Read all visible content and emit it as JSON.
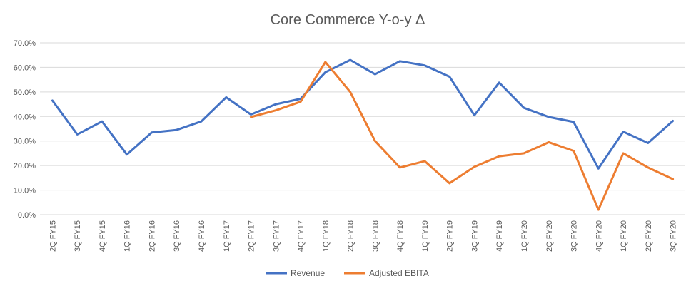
{
  "chart_data": {
    "type": "line",
    "title": "Core Commerce Y-o-y Δ",
    "xlabel": "",
    "ylabel": "",
    "ylim": [
      0,
      70
    ],
    "yticks": [
      "0.0%",
      "10.0%",
      "20.0%",
      "30.0%",
      "40.0%",
      "50.0%",
      "60.0%",
      "70.0%"
    ],
    "grid": true,
    "legend_position": "bottom",
    "categories": [
      "2Q FY15",
      "3Q FY15",
      "4Q FY15",
      "1Q FY16",
      "2Q FY16",
      "3Q FY16",
      "4Q FY16",
      "1Q FY17",
      "2Q FY17",
      "3Q FY17",
      "4Q FY17",
      "1Q FY18",
      "2Q FY18",
      "3Q FY18",
      "4Q FY18",
      "1Q FY19",
      "2Q FY19",
      "3Q FY19",
      "4Q FY19",
      "1Q FY20",
      "2Q FY20",
      "3Q FY20",
      "4Q FY20",
      "1Q FY20",
      "2Q FY20",
      "3Q FY20"
    ],
    "series": [
      {
        "name": "Revenue",
        "color": "#4472C4",
        "values": [
          46.5,
          32.7,
          38.0,
          24.5,
          33.5,
          34.5,
          38.0,
          47.8,
          40.8,
          45.0,
          47.2,
          58.0,
          63.0,
          57.2,
          62.5,
          60.8,
          56.2,
          40.5,
          53.8,
          43.5,
          39.8,
          37.8,
          18.8,
          33.8,
          29.2,
          38.2
        ]
      },
      {
        "name": "Adjusted EBITA",
        "color": "#ED7D31",
        "values": [
          null,
          null,
          null,
          null,
          null,
          null,
          null,
          null,
          39.8,
          42.5,
          46.0,
          62.2,
          50.0,
          30.0,
          19.2,
          21.8,
          12.8,
          19.5,
          23.8,
          25.0,
          29.5,
          26.0,
          2.0,
          25.0,
          19.2,
          14.5
        ]
      }
    ]
  }
}
